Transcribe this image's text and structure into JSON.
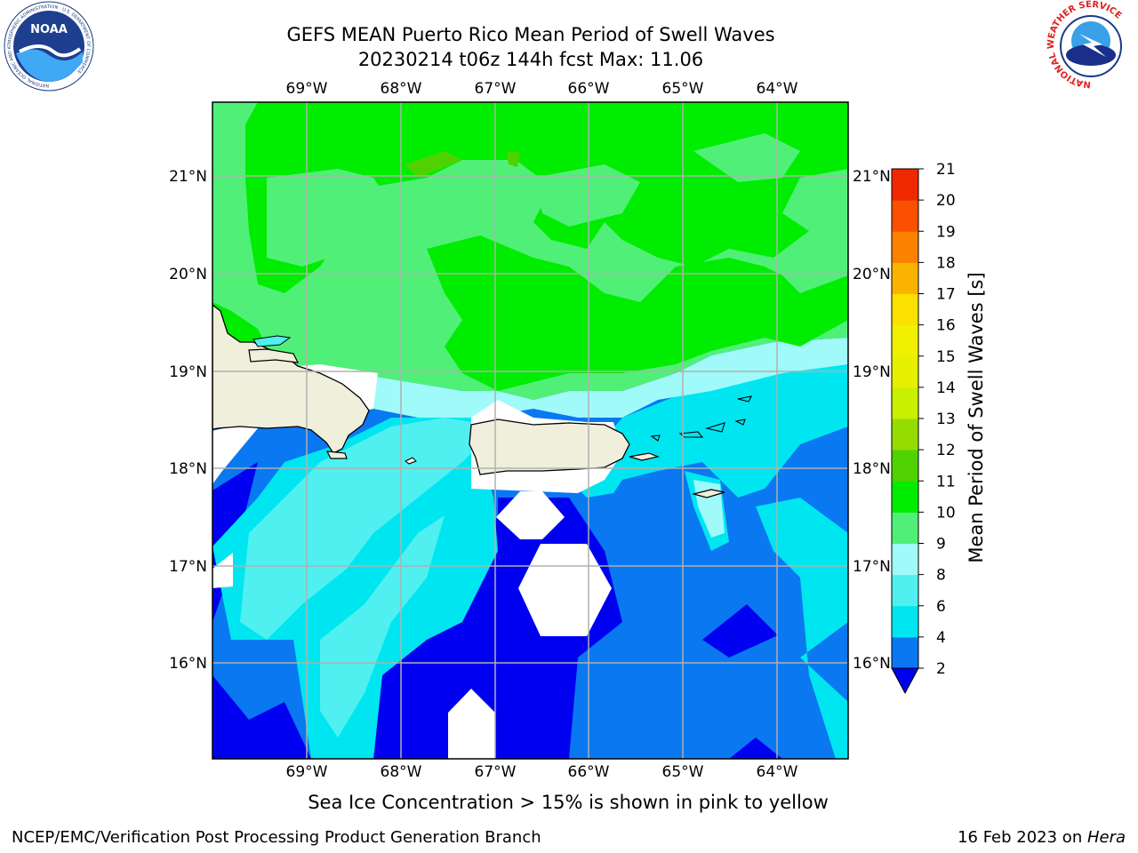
{
  "title": {
    "line1": "GEFS MEAN Puerto Rico Mean Period of Swell Waves",
    "line2": "20230214 t06z 144h fcst   Max: 11.06"
  },
  "lon_labels": [
    "69°W",
    "68°W",
    "67°W",
    "66°W",
    "65°W",
    "64°W"
  ],
  "lat_labels": [
    "21°N",
    "20°N",
    "19°N",
    "18°N",
    "17°N",
    "16°N"
  ],
  "colorbar": {
    "label": "Mean Period of Swell Waves [s]",
    "ticks": [
      "2",
      "4",
      "6",
      "8",
      "9",
      "10",
      "11",
      "12",
      "13",
      "14",
      "15",
      "16",
      "17",
      "18",
      "19",
      "20",
      "21"
    ],
    "colors": [
      "#0000f0",
      "#0a78f0",
      "#00e6f0",
      "#50f0f0",
      "#a0fafa",
      "#50f078",
      "#00ec00",
      "#50d200",
      "#96dc00",
      "#c8f000",
      "#e6f000",
      "#f0f000",
      "#fae100",
      "#fab400",
      "#fa8200",
      "#fa5000",
      "#f02800",
      "#f00000"
    ],
    "under_color": "#0000f0"
  },
  "footer": {
    "sea_ice_note": "Sea Ice Concentration > 15% is shown in pink to yellow",
    "left": "NCEP/EMC/Verification Post Processing Product Generation Branch",
    "date": "16 Feb 2023 on ",
    "host": "Hera"
  },
  "logos": {
    "noaa_text": "NOAA",
    "noaa_ring": "NATIONAL OCEANIC AND ATMOSPHERIC ADMINISTRATION · U.S. DEPARTMENT OF COMMERCE",
    "nws_ring": "NATIONAL WEATHER SERVICE"
  }
}
